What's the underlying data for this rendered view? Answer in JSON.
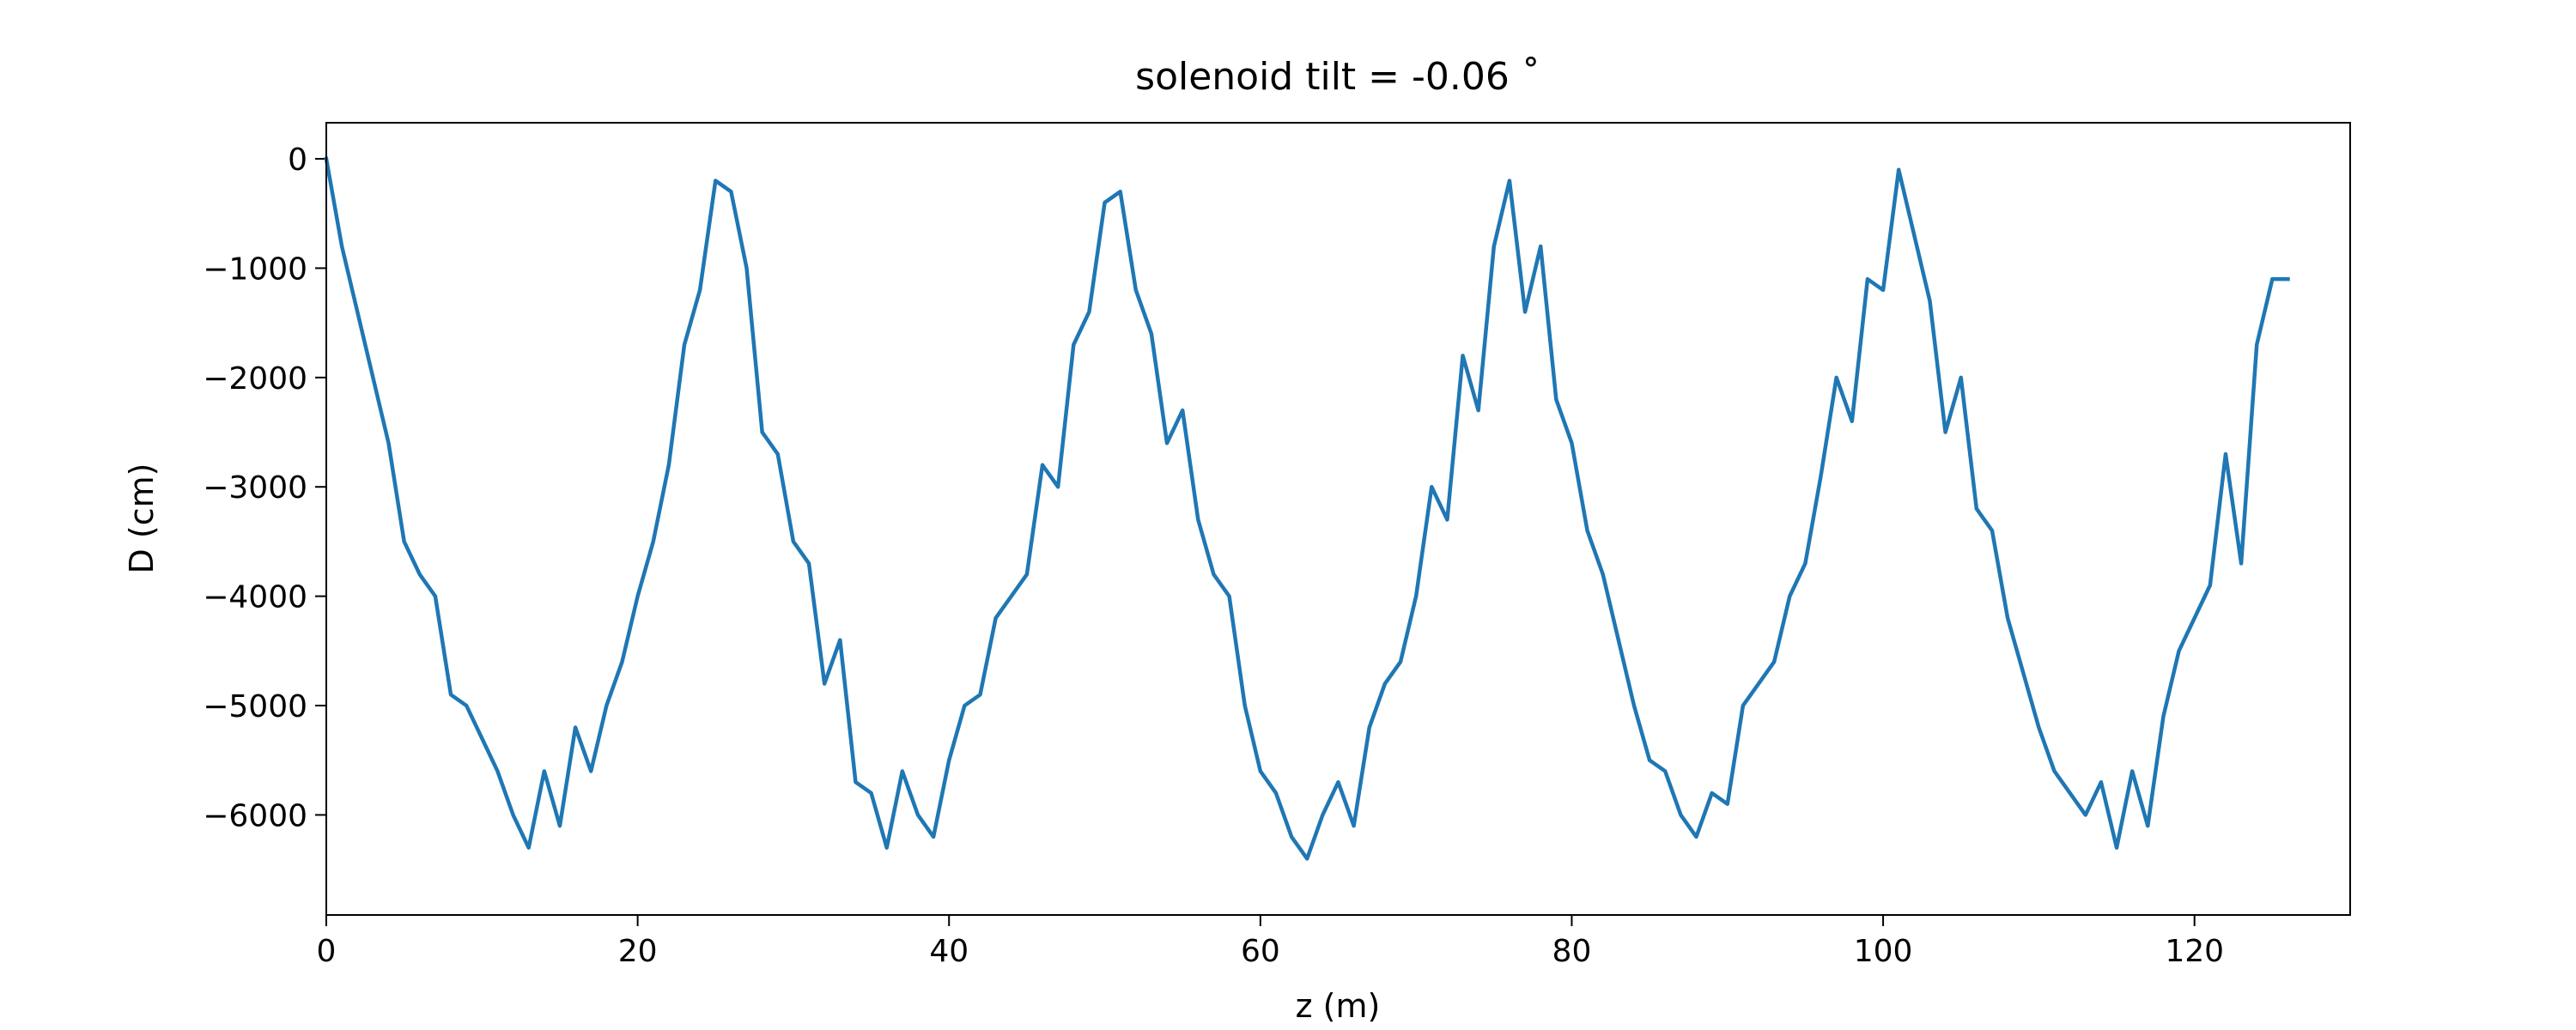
{
  "chart_data": {
    "type": "line",
    "title": "solenoid tilt = -0.06 ˚",
    "x_label": "z (m)",
    "y_label": "D (cm)",
    "color": "#1f77b4",
    "grid": false,
    "xlim": [
      0,
      130
    ],
    "ylim": [
      -6915,
      330
    ],
    "xticks": [
      0,
      20,
      40,
      60,
      80,
      100,
      120
    ],
    "yticks": [
      0,
      {
        "value": -1000,
        "label": "−1000"
      },
      {
        "value": -2000,
        "label": "−2000"
      },
      {
        "value": -3000,
        "label": "−3000"
      },
      {
        "value": -4000,
        "label": "−4000"
      },
      {
        "value": -5000,
        "label": "−5000"
      },
      {
        "value": -6000,
        "label": "−6000"
      }
    ],
    "x": [
      0,
      1,
      2,
      3,
      4,
      5,
      6,
      7,
      8,
      9,
      10,
      11,
      12,
      13,
      14,
      15,
      16,
      17,
      18,
      19,
      20,
      21,
      22,
      23,
      24,
      25,
      26,
      27,
      28,
      29,
      30,
      31,
      32,
      33,
      34,
      35,
      36,
      37,
      38,
      39,
      40,
      41,
      42,
      43,
      44,
      45,
      46,
      47,
      48,
      49,
      50,
      51,
      52,
      53,
      54,
      55,
      56,
      57,
      58,
      59,
      60,
      61,
      62,
      63,
      64,
      65,
      66,
      67,
      68,
      69,
      70,
      71,
      72,
      73,
      74,
      75,
      76,
      77,
      78,
      79,
      80,
      81,
      82,
      83,
      84,
      85,
      86,
      87,
      88,
      89,
      90,
      91,
      92,
      93,
      94,
      95,
      96,
      97,
      98,
      99,
      100,
      101,
      102,
      103,
      104,
      105,
      106,
      107,
      108,
      109,
      110,
      111,
      112,
      113,
      114,
      115,
      116,
      117,
      118,
      119,
      120,
      121,
      122,
      123,
      124,
      125,
      126
    ],
    "values": [
      0,
      -800,
      -1400,
      -2000,
      -2600,
      -3500,
      -3800,
      -4000,
      -4900,
      -5000,
      -5300,
      -5600,
      -6000,
      -6300,
      -5600,
      -6100,
      -5200,
      -5600,
      -5000,
      -4600,
      -4000,
      -3500,
      -2800,
      -1700,
      -1200,
      -200,
      -300,
      -1000,
      -2500,
      -2700,
      -3500,
      -3700,
      -4800,
      -4400,
      -5700,
      -5800,
      -6300,
      -5600,
      -6000,
      -6200,
      -5500,
      -5000,
      -4900,
      -4200,
      -4000,
      -3800,
      -2800,
      -3000,
      -1700,
      -1400,
      -400,
      -300,
      -1200,
      -1600,
      -2600,
      -2300,
      -3300,
      -3800,
      -4000,
      -5000,
      -5600,
      -5800,
      -6200,
      -6400,
      -6000,
      -5700,
      -6100,
      -5200,
      -4800,
      -4600,
      -4000,
      -3000,
      -3300,
      -1800,
      -2300,
      -800,
      -200,
      -1400,
      -800,
      -2200,
      -2600,
      -3400,
      -3800,
      -4400,
      -5000,
      -5500,
      -5600,
      -6000,
      -6200,
      -5800,
      -5900,
      -5000,
      -4800,
      -4600,
      -4000,
      -3700,
      -2900,
      -2000,
      -2400,
      -1100,
      -1200,
      -100,
      -700,
      -1300,
      -2500,
      -2000,
      -3200,
      -3400,
      -4200,
      -4700,
      -5200,
      -5600,
      -5800,
      -6000,
      -5700,
      -6300,
      -5600,
      -6100,
      -5100,
      -4500,
      -4200,
      -3900,
      -2700,
      -3700,
      -1700,
      -1100,
      -1100
    ]
  }
}
